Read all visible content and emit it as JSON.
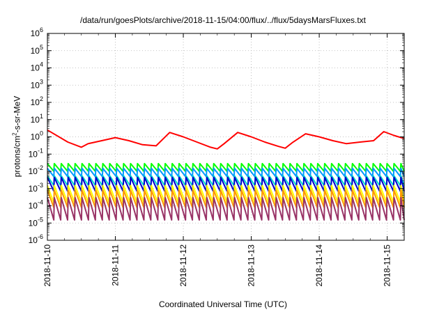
{
  "chart_data": {
    "type": "line",
    "title": "/data/run/goesPlots/archive/2018-11-15/04:00/flux/../flux/5daysMarsFluxes.txt",
    "xlabel": "Coordinated Universal Time (UTC)",
    "ylabel_parts": [
      "protons/cm",
      "2",
      "-s-sr-MeV"
    ],
    "yscale": "log",
    "ylim_exp": [
      -6,
      6
    ],
    "y_ticks": [
      {
        "base": "10",
        "exp": "-6"
      },
      {
        "base": "10",
        "exp": "-5"
      },
      {
        "base": "10",
        "exp": "-4"
      },
      {
        "base": "10",
        "exp": "-3"
      },
      {
        "base": "10",
        "exp": "-2"
      },
      {
        "base": "10",
        "exp": "-1"
      },
      {
        "base": "10",
        "exp": "0"
      },
      {
        "base": "10",
        "exp": "1"
      },
      {
        "base": "10",
        "exp": "2"
      },
      {
        "base": "10",
        "exp": "3"
      },
      {
        "base": "10",
        "exp": "4"
      },
      {
        "base": "10",
        "exp": "5"
      },
      {
        "base": "10",
        "exp": "6"
      }
    ],
    "x_tick_labels": [
      "2018-11-10",
      "2018-11-11",
      "2018-11-12",
      "2018-11-13",
      "2018-11-14",
      "2018-11-15"
    ],
    "xlim_days": [
      0,
      5.25
    ],
    "grid": true,
    "sawtooth_period_days": 0.102,
    "series": [
      {
        "color": "#ff0000",
        "x": [
          0,
          0.3,
          0.5,
          0.6,
          0.8,
          1.0,
          1.2,
          1.4,
          1.6,
          1.8,
          2.0,
          2.2,
          2.4,
          2.5,
          2.6,
          2.8,
          3.0,
          3.2,
          3.4,
          3.5,
          3.6,
          3.8,
          4.0,
          4.2,
          4.4,
          4.6,
          4.8,
          4.95,
          5.1,
          5.25
        ],
        "y": [
          2.5,
          0.5,
          0.25,
          0.4,
          0.6,
          0.9,
          0.6,
          0.35,
          0.3,
          1.8,
          1.0,
          0.5,
          0.25,
          0.2,
          0.4,
          1.8,
          1.0,
          0.5,
          0.28,
          0.22,
          0.45,
          1.5,
          1.0,
          0.6,
          0.4,
          0.5,
          0.6,
          2.0,
          1.2,
          0.8
        ]
      },
      {
        "color": "#00ff00",
        "peak": 0.028,
        "trough": 0.01
      },
      {
        "color": "#0099ff",
        "peak": 0.015,
        "trough": 0.005
      },
      {
        "color": "#00ddcc",
        "peak": 0.0055,
        "trough": 0.0015
      },
      {
        "color": "#0000cc",
        "peak": 0.0045,
        "trough": 0.0007
      },
      {
        "color": "#ffff00",
        "peak": 0.0015,
        "trough": 0.00015
      },
      {
        "color": "#ff9900",
        "peak": 0.0008,
        "trough": 8e-05
      },
      {
        "color": "#993366",
        "peak": 0.0003,
        "trough": 1.5e-05
      }
    ]
  }
}
